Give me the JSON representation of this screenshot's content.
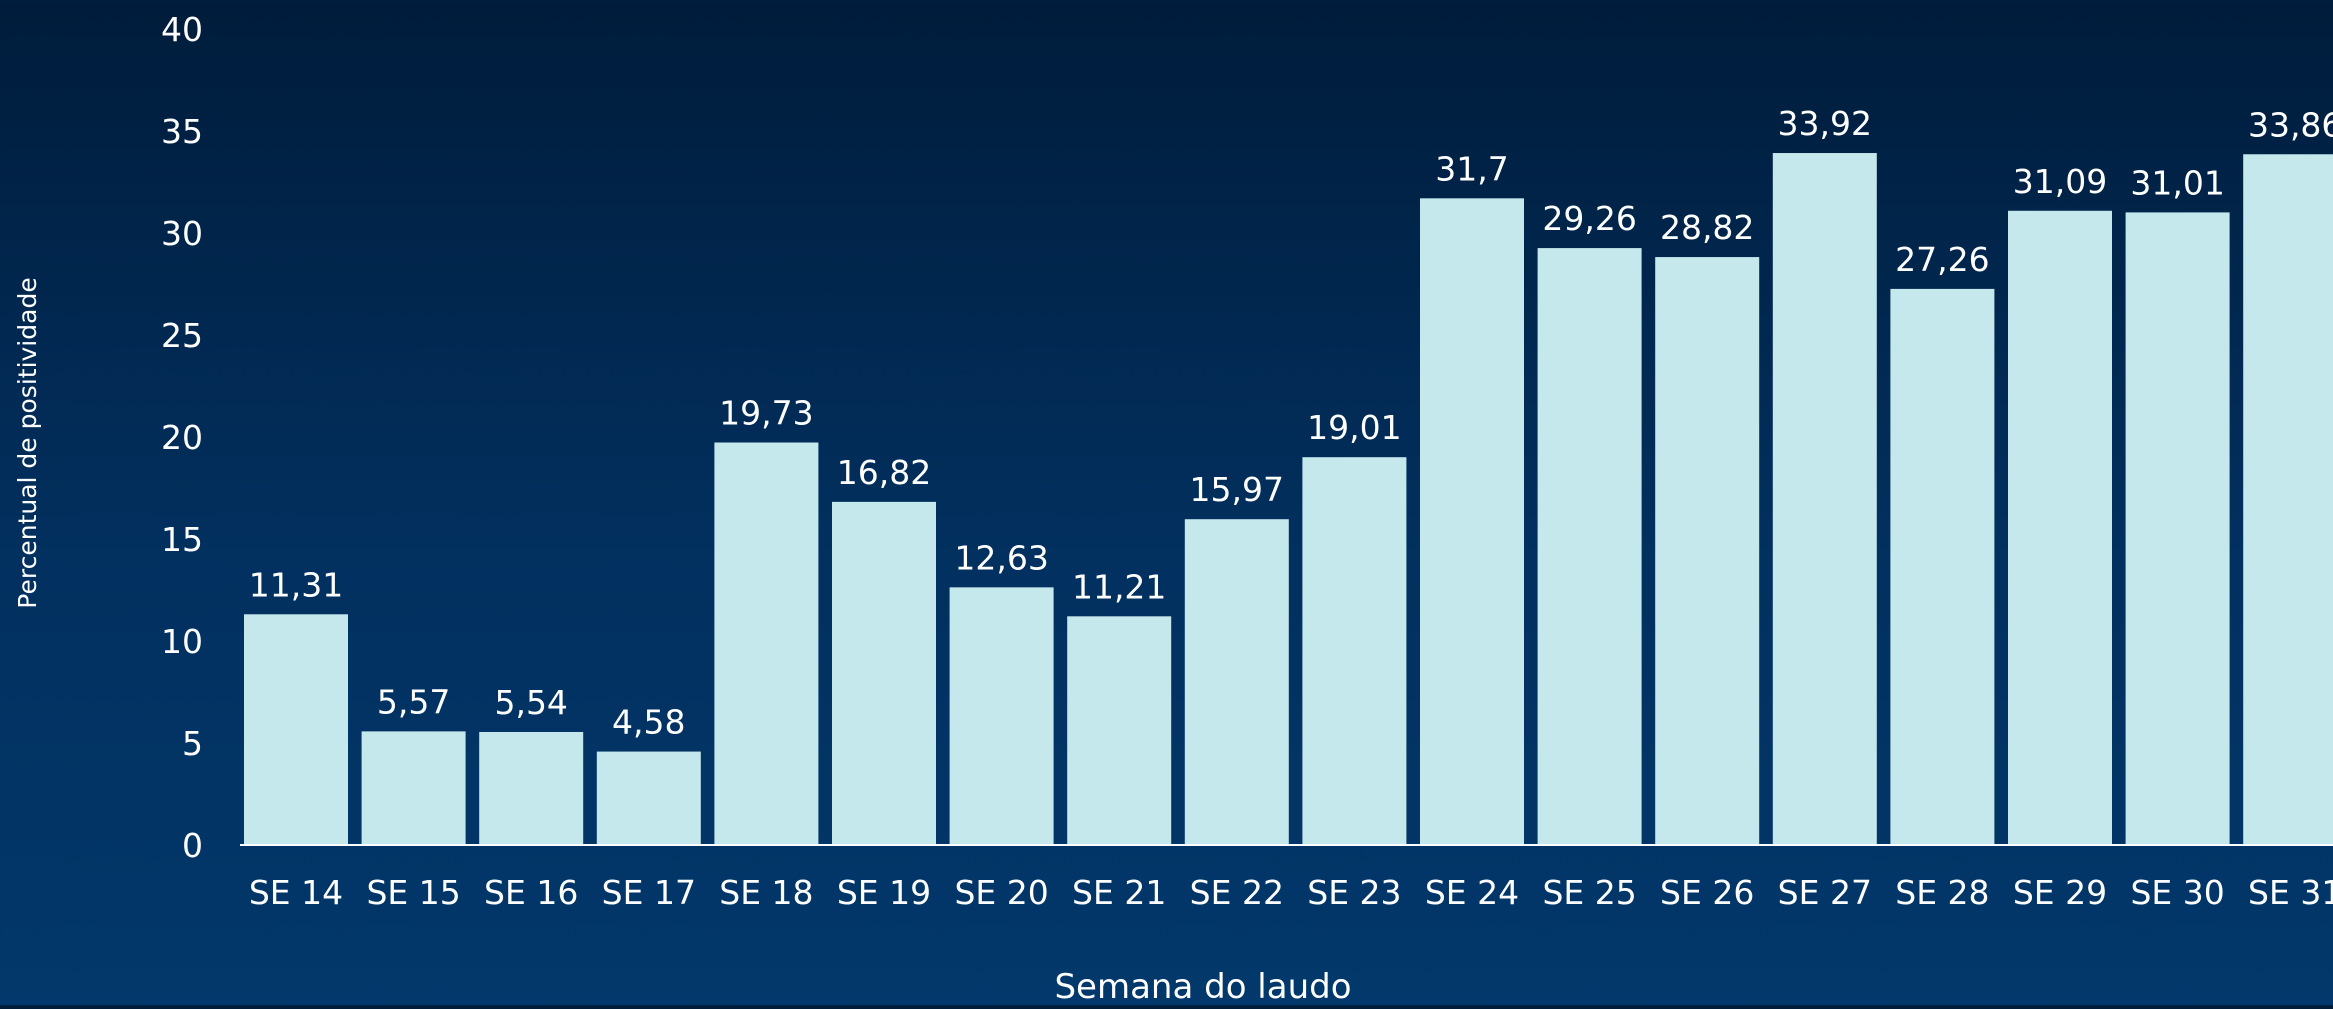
{
  "chart_data": {
    "type": "bar",
    "title": "",
    "xlabel": "Semana do laudo",
    "ylabel": "Percentual de positividade",
    "ylim": [
      0,
      40
    ],
    "yticks": [
      0,
      5,
      10,
      15,
      20,
      25,
      30,
      35,
      40
    ],
    "grid": false,
    "categories": [
      "SE 14",
      "SE 15",
      "SE 16",
      "SE 17",
      "SE 18",
      "SE 19",
      "SE 20",
      "SE 21",
      "SE 22",
      "SE 23",
      "SE 24",
      "SE 25",
      "SE 26",
      "SE 27",
      "SE 28",
      "SE 29",
      "SE 30",
      "SE 31"
    ],
    "values": [
      11.31,
      5.57,
      5.54,
      4.58,
      19.73,
      16.82,
      12.63,
      11.21,
      15.97,
      19.01,
      31.7,
      29.26,
      28.82,
      33.92,
      27.26,
      31.09,
      31.01,
      33.86
    ],
    "data_labels": [
      "11,31",
      "5,57",
      "5,54",
      "4,58",
      "19,73",
      "16,82",
      "12,63",
      "11,21",
      "15,97",
      "19,01",
      "31,7",
      "29,26",
      "28,82",
      "33,92",
      "27,26",
      "31,09",
      "31,01",
      "33,86"
    ],
    "colors": {
      "bar": "#c5e8ec",
      "text": "#ffffff",
      "axis": "#ffffff",
      "background_top": "#001c3b",
      "background_bottom": "#02386b"
    }
  }
}
